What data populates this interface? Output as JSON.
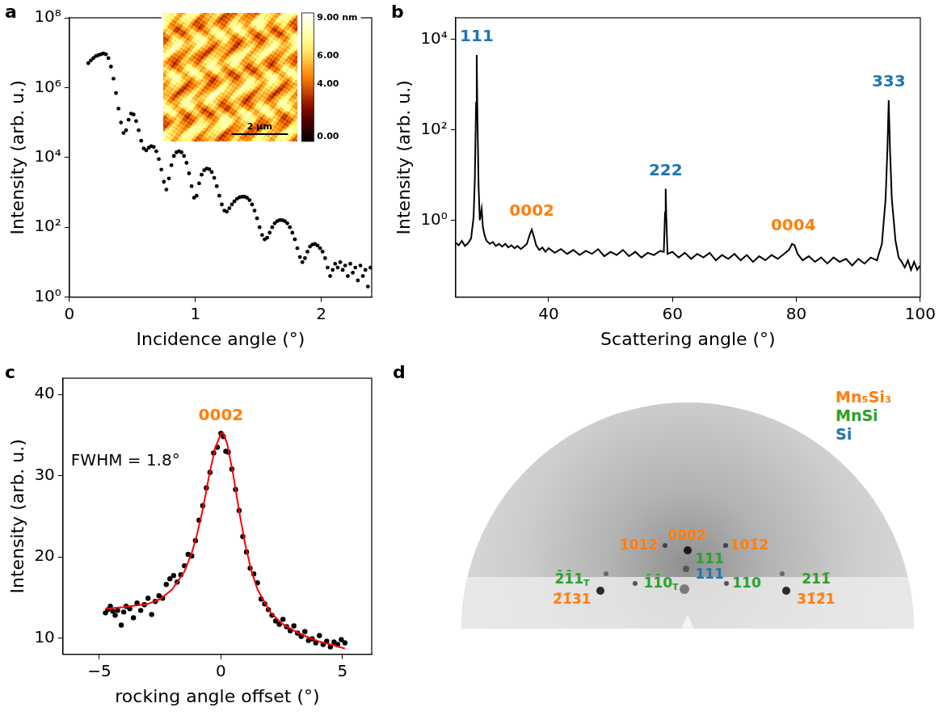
{
  "chart_data": [
    {
      "panel": "a",
      "type": "scatter",
      "x_label": "Incidence angle (°)",
      "y_label": "Intensity (arb. u.)",
      "log": "y",
      "grid": false,
      "marker": "circle",
      "color": "#000000",
      "xlim": [
        0,
        2.4
      ],
      "ylim": [
        1,
        100000000
      ],
      "xticks": [
        0,
        1,
        2
      ],
      "yticks": [
        {
          "value": 1,
          "label": "10⁰"
        },
        {
          "value": 100,
          "label": "10²"
        },
        {
          "value": 10000,
          "label": "10⁴"
        },
        {
          "value": 1000000,
          "label": "10⁶"
        },
        {
          "value": 100000000,
          "label": "10⁸"
        }
      ],
      "x": [
        0.15,
        0.17,
        0.19,
        0.21,
        0.23,
        0.25,
        0.27,
        0.29,
        0.31,
        0.33,
        0.35,
        0.37,
        0.39,
        0.41,
        0.43,
        0.45,
        0.47,
        0.49,
        0.51,
        0.53,
        0.55,
        0.57,
        0.59,
        0.61,
        0.63,
        0.65,
        0.67,
        0.69,
        0.71,
        0.73,
        0.75,
        0.77,
        0.79,
        0.81,
        0.83,
        0.85,
        0.87,
        0.89,
        0.91,
        0.93,
        0.95,
        0.97,
        0.99,
        1.01,
        1.03,
        1.05,
        1.07,
        1.09,
        1.11,
        1.13,
        1.15,
        1.17,
        1.19,
        1.21,
        1.23,
        1.25,
        1.27,
        1.29,
        1.31,
        1.33,
        1.35,
        1.37,
        1.39,
        1.41,
        1.43,
        1.45,
        1.47,
        1.49,
        1.51,
        1.53,
        1.55,
        1.57,
        1.59,
        1.61,
        1.63,
        1.65,
        1.67,
        1.69,
        1.71,
        1.73,
        1.75,
        1.77,
        1.79,
        1.81,
        1.83,
        1.85,
        1.87,
        1.89,
        1.91,
        1.93,
        1.95,
        1.97,
        1.99,
        2.01,
        2.03,
        2.05,
        2.07,
        2.09,
        2.11,
        2.13,
        2.15,
        2.17,
        2.19,
        2.21,
        2.23,
        2.25,
        2.27,
        2.29,
        2.31,
        2.33,
        2.35,
        2.37,
        2.39
      ],
      "values": [
        5000000,
        6000000,
        7000000,
        8000000,
        8500000,
        9000000,
        9500000,
        9000000,
        7000000,
        4000000,
        1800000,
        700000,
        250000,
        100000,
        50000,
        60000,
        120000,
        180000,
        170000,
        110000,
        60000,
        30000,
        18000,
        16000,
        19000,
        21000,
        20000,
        15000,
        9000,
        4500,
        2000,
        1200,
        2500,
        6000,
        11000,
        14000,
        15000,
        14000,
        11000,
        7000,
        3500,
        1500,
        700,
        800,
        1800,
        3200,
        4300,
        4800,
        4600,
        3800,
        2600,
        1500,
        800,
        450,
        300,
        280,
        350,
        450,
        550,
        650,
        720,
        750,
        750,
        700,
        600,
        450,
        300,
        180,
        100,
        60,
        45,
        50,
        70,
        100,
        130,
        150,
        160,
        160,
        150,
        130,
        100,
        70,
        45,
        25,
        14,
        10,
        13,
        20,
        28,
        32,
        33,
        30,
        25,
        20,
        13,
        7,
        4,
        6,
        9,
        7,
        10,
        6,
        8,
        4,
        9,
        5,
        7,
        3,
        8,
        4,
        6,
        2,
        7
      ],
      "inset": {
        "colorbar_range": [
          0,
          9
        ],
        "colorbar_ticks": [
          {
            "value": 9,
            "label": "9.00 nm"
          },
          {
            "value": 6,
            "label": "6.00"
          },
          {
            "value": 4,
            "label": "4.00"
          },
          {
            "value": 0,
            "label": "0.00"
          }
        ],
        "scale_bar": "2 µm"
      }
    },
    {
      "panel": "b",
      "type": "line",
      "x_label": "Scattering angle (°)",
      "y_label": "Intensity (arb. u.)",
      "log": "y",
      "grid": false,
      "color": "#000000",
      "line_style": "solid",
      "xlim": [
        25,
        100
      ],
      "ylim": [
        0.02,
        30000
      ],
      "xticks": [
        40,
        60,
        80,
        100
      ],
      "yticks": [
        {
          "value": 1,
          "label": "10⁰"
        },
        {
          "value": 100,
          "label": "10²"
        },
        {
          "value": 10000,
          "label": "10⁴"
        }
      ],
      "x": [
        25,
        25.5,
        26,
        26.5,
        27,
        27.5,
        27.9,
        28.1,
        28.3,
        28.4,
        28.5,
        28.7,
        28.9,
        29.2,
        29.4,
        29.7,
        30,
        30.5,
        31,
        31.5,
        32,
        32.5,
        33,
        33.5,
        34,
        34.5,
        35,
        35.5,
        36,
        36.5,
        37,
        37.3,
        37.6,
        38,
        38.5,
        39,
        39.5,
        40,
        41,
        42,
        43,
        44,
        45,
        46,
        47,
        48,
        49,
        50,
        51,
        52,
        53,
        54,
        55,
        56,
        57,
        58,
        58.6,
        58.8,
        58.9,
        59,
        59.2,
        60,
        61,
        62,
        63,
        64,
        65,
        66,
        67,
        68,
        69,
        70,
        71,
        72,
        73,
        74,
        75,
        76,
        77,
        78,
        78.8,
        79.3,
        79.7,
        80.2,
        81,
        82,
        83,
        84,
        85,
        86,
        87,
        88,
        89,
        90,
        91,
        92,
        93,
        93.8,
        94.4,
        94.7,
        94.9,
        95.1,
        95.4,
        96,
        96.5,
        97,
        97.5,
        98,
        98.5,
        99,
        99.5,
        100
      ],
      "values": [
        0.32,
        0.28,
        0.35,
        0.27,
        0.31,
        0.4,
        1.2,
        8,
        400,
        4500,
        300,
        6,
        1.0,
        1.8,
        0.7,
        0.45,
        0.35,
        0.3,
        0.33,
        0.27,
        0.3,
        0.26,
        0.3,
        0.25,
        0.28,
        0.24,
        0.27,
        0.23,
        0.26,
        0.3,
        0.5,
        0.62,
        0.45,
        0.28,
        0.22,
        0.25,
        0.2,
        0.24,
        0.19,
        0.23,
        0.18,
        0.22,
        0.17,
        0.21,
        0.18,
        0.23,
        0.16,
        0.2,
        0.17,
        0.22,
        0.16,
        0.2,
        0.15,
        0.19,
        0.17,
        0.21,
        0.2,
        1.5,
        5,
        1.2,
        0.18,
        0.2,
        0.15,
        0.19,
        0.14,
        0.18,
        0.15,
        0.19,
        0.13,
        0.17,
        0.14,
        0.18,
        0.13,
        0.17,
        0.12,
        0.16,
        0.13,
        0.17,
        0.14,
        0.18,
        0.22,
        0.3,
        0.28,
        0.18,
        0.13,
        0.16,
        0.12,
        0.15,
        0.11,
        0.15,
        0.12,
        0.14,
        0.1,
        0.14,
        0.11,
        0.15,
        0.13,
        0.3,
        3,
        40,
        450,
        40,
        3,
        0.35,
        0.15,
        0.12,
        0.09,
        0.13,
        0.08,
        0.12,
        0.08,
        0.1
      ],
      "annotations": [
        {
          "text": "111",
          "x": 28.4,
          "color": "#1f77b4"
        },
        {
          "text": "0002",
          "x": 37.3,
          "color": "#ff7f0e"
        },
        {
          "text": "222",
          "x": 58.9,
          "color": "#1f77b4"
        },
        {
          "text": "0004",
          "x": 79.5,
          "color": "#ff7f0e"
        },
        {
          "text": "333",
          "x": 94.9,
          "color": "#1f77b4"
        }
      ]
    },
    {
      "panel": "c",
      "type": "scatter",
      "x_label": "rocking angle offset (°)",
      "y_label": "Intensity (arb. u.)",
      "grid": false,
      "xlim": [
        -6.5,
        6.2
      ],
      "ylim": [
        8,
        42
      ],
      "xticks": [
        {
          "value": -5,
          "label": "−5"
        },
        0,
        5
      ],
      "yticks": [
        10,
        20,
        30,
        40
      ],
      "series": [
        {
          "type": "scatter",
          "marker": "circle",
          "color": "#000000",
          "x": [
            -4.75,
            -4.65,
            -4.55,
            -4.45,
            -4.35,
            -4.25,
            -4.1,
            -4.0,
            -3.9,
            -3.75,
            -3.6,
            -3.45,
            -3.3,
            -3.15,
            -3.0,
            -2.85,
            -2.7,
            -2.55,
            -2.4,
            -2.25,
            -2.1,
            -1.95,
            -1.8,
            -1.65,
            -1.5,
            -1.35,
            -1.2,
            -1.05,
            -0.9,
            -0.75,
            -0.6,
            -0.45,
            -0.3,
            -0.15,
            0.0,
            0.1,
            0.2,
            0.3,
            0.45,
            0.6,
            0.75,
            0.9,
            1.05,
            1.2,
            1.35,
            1.5,
            1.65,
            1.8,
            1.95,
            2.1,
            2.25,
            2.4,
            2.55,
            2.7,
            2.85,
            3.0,
            3.15,
            3.3,
            3.45,
            3.6,
            3.75,
            3.9,
            4.05,
            4.2,
            4.35,
            4.5,
            4.65,
            4.8,
            4.95,
            5.1
          ],
          "values": [
            13.1,
            13.5,
            13.9,
            13.3,
            12.8,
            13.4,
            11.6,
            13.2,
            13.9,
            13.6,
            12.5,
            14.3,
            13.4,
            14.1,
            14.9,
            12.9,
            14.5,
            15.2,
            14.9,
            16.6,
            17.3,
            17.7,
            16.9,
            17.8,
            18.9,
            20.3,
            20.1,
            22.0,
            24.5,
            26.3,
            28.5,
            30.4,
            32.8,
            33.5,
            35.2,
            34.8,
            33.0,
            32.9,
            30.8,
            28.3,
            25.7,
            22.5,
            20.6,
            18.6,
            17.9,
            16.8,
            14.8,
            14.2,
            13.5,
            12.8,
            12.1,
            11.7,
            12.3,
            11.4,
            10.9,
            11.5,
            10.6,
            10.2,
            10.8,
            9.7,
            9.9,
            9.4,
            10.3,
            9.2,
            9.6,
            8.9,
            9.5,
            9.2,
            9.8,
            9.4
          ]
        },
        {
          "type": "line",
          "line_style": "solid",
          "color": "#ff0000",
          "x": [
            -4.75,
            -4.0,
            -3.0,
            -2.5,
            -2.0,
            -1.5,
            -1.2,
            -1.0,
            -0.75,
            -0.5,
            -0.25,
            0.0,
            0.1,
            0.25,
            0.5,
            0.75,
            1.0,
            1.25,
            1.5,
            2.0,
            2.5,
            3.0,
            3.5,
            4.0,
            4.5,
            5.1
          ],
          "values": [
            13.6,
            13.8,
            14.2,
            14.8,
            16.0,
            18.2,
            20.5,
            22.6,
            25.8,
            29.8,
            33.3,
            35.2,
            35.2,
            34.0,
            30.2,
            25.6,
            21.5,
            18.3,
            16.0,
            13.3,
            11.8,
            10.9,
            10.2,
            9.6,
            9.2,
            8.7
          ]
        }
      ],
      "annotations": [
        {
          "text": "0002",
          "x": 0,
          "color": "#ff7f0e"
        },
        {
          "text": "FWHM = 1.8°",
          "color": "#000000"
        }
      ]
    }
  ],
  "diagram": {
    "panel": "d",
    "type": "diffraction_image",
    "legend": [
      {
        "text": "Mn₅Si₃",
        "color": "#ff7f0e"
      },
      {
        "text": "MnSi",
        "color": "#2ca02c"
      },
      {
        "text": "Si",
        "color": "#1f77b4"
      }
    ],
    "labels": [
      {
        "text": "0002",
        "color": "#ff7f0e"
      },
      {
        "text": "1̄012",
        "color": "#ff7f0e"
      },
      {
        "text": "101̄2",
        "color": "#ff7f0e"
      },
      {
        "text": "111",
        "color": "#2ca02c"
      },
      {
        "text": "111",
        "color": "#1f77b4"
      },
      {
        "text": "1̄1̄0",
        "subscript": "T",
        "color": "#2ca02c"
      },
      {
        "text": "110",
        "color": "#2ca02c"
      },
      {
        "text": "2̄1̄1",
        "subscript": "T",
        "color": "#2ca02c"
      },
      {
        "text": "2̄1̄31",
        "color": "#ff7f0e"
      },
      {
        "text": "211̄",
        "color": "#2ca02c"
      },
      {
        "text": "31̄2̄1",
        "color": "#ff7f0e"
      }
    ]
  }
}
